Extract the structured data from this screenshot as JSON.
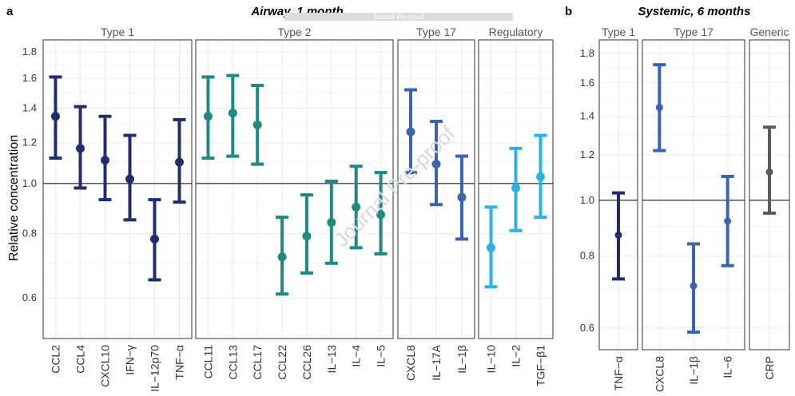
{
  "chart_data": [
    {
      "type": "errorbar",
      "panel_label": "a",
      "title": "Airway, 1 month",
      "ylabel": "Relative concentration",
      "ylim": [
        0.5,
        1.9
      ],
      "yscale": "log",
      "yticks": [
        "0.6",
        "0.8",
        "1.0",
        "1.2",
        "1.4",
        "1.6",
        "1.8"
      ],
      "reference_line": 1.0,
      "facets": [
        {
          "label": "Type 1",
          "color": "#222d6b",
          "points": [
            {
              "cat": "CCL2",
              "y": 1.35,
              "lo": 1.12,
              "hi": 1.61
            },
            {
              "cat": "CCL4",
              "y": 1.17,
              "lo": 0.98,
              "hi": 1.41
            },
            {
              "cat": "CXCL10",
              "y": 1.11,
              "lo": 0.93,
              "hi": 1.35
            },
            {
              "cat": "IFN−γ",
              "y": 1.02,
              "lo": 0.85,
              "hi": 1.24
            },
            {
              "cat": "IL−12p70",
              "y": 0.78,
              "lo": 0.65,
              "hi": 0.93
            },
            {
              "cat": "TNF−α",
              "y": 1.1,
              "lo": 0.92,
              "hi": 1.33
            }
          ]
        },
        {
          "label": "Type 2",
          "color": "#1f8a83",
          "points": [
            {
              "cat": "CCL11",
              "y": 1.35,
              "lo": 1.12,
              "hi": 1.61
            },
            {
              "cat": "CCL13",
              "y": 1.37,
              "lo": 1.13,
              "hi": 1.62
            },
            {
              "cat": "CCL17",
              "y": 1.3,
              "lo": 1.09,
              "hi": 1.55
            },
            {
              "cat": "CCL22",
              "y": 0.72,
              "lo": 0.61,
              "hi": 0.86
            },
            {
              "cat": "CCL26",
              "y": 0.79,
              "lo": 0.67,
              "hi": 0.95
            },
            {
              "cat": "IL−13",
              "y": 0.84,
              "lo": 0.7,
              "hi": 1.01
            },
            {
              "cat": "IL−4",
              "y": 0.9,
              "lo": 0.75,
              "hi": 1.08
            },
            {
              "cat": "IL−5",
              "y": 0.87,
              "lo": 0.73,
              "hi": 1.05
            }
          ]
        },
        {
          "label": "Type 17",
          "color": "#3a64b0",
          "points": [
            {
              "cat": "CXCL8",
              "y": 1.26,
              "lo": 1.05,
              "hi": 1.52
            },
            {
              "cat": "IL−17A",
              "y": 1.09,
              "lo": 0.91,
              "hi": 1.32
            },
            {
              "cat": "IL−1β",
              "y": 0.94,
              "lo": 0.78,
              "hi": 1.13
            }
          ]
        },
        {
          "label": "Regulatory",
          "color": "#2bb2e8",
          "points": [
            {
              "cat": "IL−10",
              "y": 0.75,
              "lo": 0.63,
              "hi": 0.9
            },
            {
              "cat": "IL−2",
              "y": 0.98,
              "lo": 0.81,
              "hi": 1.17
            },
            {
              "cat": "TGF−β1",
              "y": 1.03,
              "lo": 0.86,
              "hi": 1.24
            }
          ]
        }
      ]
    },
    {
      "type": "errorbar",
      "panel_label": "b",
      "title": "Systemic, 6 months",
      "ylabel": "",
      "ylim": [
        0.55,
        1.9
      ],
      "yscale": "log",
      "yticks": [
        "0.6",
        "0.8",
        "1.0",
        "1.2",
        "1.4",
        "1.6",
        "1.8"
      ],
      "reference_line": 1.0,
      "facets": [
        {
          "label": "Type 1",
          "color": "#222d6b",
          "points": [
            {
              "cat": "TNF−α",
              "y": 0.87,
              "lo": 0.73,
              "hi": 1.03
            }
          ]
        },
        {
          "label": "Type 17",
          "color": "#3a64b0",
          "points": [
            {
              "cat": "CXCL8",
              "y": 1.45,
              "lo": 1.22,
              "hi": 1.72
            },
            {
              "cat": "IL−1β",
              "y": 0.71,
              "lo": 0.59,
              "hi": 0.84
            },
            {
              "cat": "IL−6",
              "y": 0.92,
              "lo": 0.77,
              "hi": 1.1
            }
          ]
        },
        {
          "label": "Generic",
          "color": "#5c5c5c",
          "points": [
            {
              "cat": "CRP",
              "y": 1.12,
              "lo": 0.95,
              "hi": 1.34
            }
          ]
        }
      ]
    }
  ],
  "watermark": {
    "banner": "Journal Pre-proof",
    "diagonal": "Journal Pre-proof"
  }
}
